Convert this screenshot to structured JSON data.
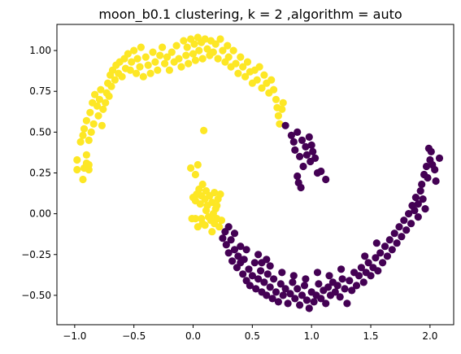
{
  "chart_data": {
    "type": "scatter",
    "title": "moon_b0.1 clustering, k = 2 ,algorithm = auto",
    "xlabel": "",
    "ylabel": "",
    "xlim": [
      -1.15,
      2.2
    ],
    "ylim": [
      -0.68,
      1.16
    ],
    "x_ticks": [
      -1.0,
      -0.5,
      0.0,
      0.5,
      1.0,
      1.5,
      2.0
    ],
    "x_tick_labels": [
      "−1.0",
      "−0.5",
      "0.0",
      "0.5",
      "1.0",
      "1.5",
      "2.0"
    ],
    "y_ticks": [
      -0.5,
      -0.25,
      0.0,
      0.25,
      0.5,
      0.75,
      1.0
    ],
    "y_tick_labels": [
      "−0.50",
      "−0.25",
      "0.00",
      "0.25",
      "0.50",
      "0.75",
      "1.00"
    ],
    "grid": false,
    "colors": {
      "cluster0": "#fde725",
      "cluster1": "#440154"
    },
    "series": [
      {
        "color": "#fde725",
        "points": [
          [
            -0.98,
            0.27
          ],
          [
            -0.98,
            0.33
          ],
          [
            -0.93,
            0.21
          ],
          [
            -0.92,
            0.28
          ],
          [
            -0.9,
            0.31
          ],
          [
            -0.9,
            0.36
          ],
          [
            -0.88,
            0.27
          ],
          [
            -0.88,
            0.3
          ],
          [
            -0.95,
            0.44
          ],
          [
            -0.93,
            0.48
          ],
          [
            -0.92,
            0.52
          ],
          [
            -0.9,
            0.57
          ],
          [
            -0.88,
            0.45
          ],
          [
            -0.87,
            0.62
          ],
          [
            -0.86,
            0.5
          ],
          [
            -0.84,
            0.55
          ],
          [
            -0.85,
            0.68
          ],
          [
            -0.83,
            0.73
          ],
          [
            -0.81,
            0.66
          ],
          [
            -0.8,
            0.6
          ],
          [
            -0.79,
            0.7
          ],
          [
            -0.78,
            0.76
          ],
          [
            -0.77,
            0.54
          ],
          [
            -0.76,
            0.64
          ],
          [
            -0.74,
            0.68
          ],
          [
            -0.73,
            0.74
          ],
          [
            -0.72,
            0.8
          ],
          [
            -0.71,
            0.72
          ],
          [
            -0.7,
            0.85
          ],
          [
            -0.69,
            0.78
          ],
          [
            -0.68,
            0.88
          ],
          [
            -0.66,
            0.82
          ],
          [
            -0.65,
            0.91
          ],
          [
            -0.63,
            0.86
          ],
          [
            -0.62,
            0.93
          ],
          [
            -0.6,
            0.84
          ],
          [
            -0.58,
            0.95
          ],
          [
            -0.57,
            0.89
          ],
          [
            -0.55,
            0.98
          ],
          [
            -0.53,
            0.88
          ],
          [
            -0.52,
            0.93
          ],
          [
            -0.5,
            1.0
          ],
          [
            -0.48,
            0.86
          ],
          [
            -0.47,
            0.95
          ],
          [
            -0.45,
            0.9
          ],
          [
            -0.44,
            1.02
          ],
          [
            -0.42,
            0.84
          ],
          [
            -0.4,
            0.96
          ],
          [
            -0.38,
            0.91
          ],
          [
            -0.36,
            0.86
          ],
          [
            -0.34,
            0.99
          ],
          [
            -0.32,
            0.93
          ],
          [
            -0.3,
            0.88
          ],
          [
            -0.28,
            0.97
          ],
          [
            -0.26,
            1.02
          ],
          [
            -0.24,
            0.92
          ],
          [
            -0.22,
            0.96
          ],
          [
            -0.2,
            0.88
          ],
          [
            -0.18,
            0.99
          ],
          [
            -0.16,
            0.93
          ],
          [
            -0.14,
            1.03
          ],
          [
            -0.12,
            0.95
          ],
          [
            -0.1,
            0.9
          ],
          [
            -0.08,
            1.06
          ],
          [
            -0.06,
            0.97
          ],
          [
            -0.05,
            1.02
          ],
          [
            -0.04,
            0.92
          ],
          [
            -0.02,
            1.07
          ],
          [
            0.0,
            0.98
          ],
          [
            0.01,
            1.04
          ],
          [
            0.02,
            0.94
          ],
          [
            0.04,
            1.08
          ],
          [
            0.05,
            1.0
          ],
          [
            0.07,
            1.05
          ],
          [
            0.08,
            0.95
          ],
          [
            0.1,
            1.07
          ],
          [
            0.12,
            1.01
          ],
          [
            0.14,
            0.97
          ],
          [
            0.15,
            1.06
          ],
          [
            0.17,
            0.99
          ],
          [
            0.19,
            1.04
          ],
          [
            0.21,
            0.95
          ],
          [
            0.23,
            1.07
          ],
          [
            0.25,
            1.0
          ],
          [
            0.27,
            0.93
          ],
          [
            0.29,
            1.03
          ],
          [
            0.3,
            0.96
          ],
          [
            0.32,
            0.9
          ],
          [
            0.34,
            1.0
          ],
          [
            0.36,
            0.92
          ],
          [
            0.38,
            0.86
          ],
          [
            0.4,
            0.96
          ],
          [
            0.42,
            0.9
          ],
          [
            0.44,
            0.84
          ],
          [
            0.46,
            0.93
          ],
          [
            0.48,
            0.87
          ],
          [
            0.5,
            0.8
          ],
          [
            0.52,
            0.88
          ],
          [
            0.54,
            0.82
          ],
          [
            0.56,
            0.9
          ],
          [
            0.58,
            0.77
          ],
          [
            0.6,
            0.85
          ],
          [
            0.62,
            0.8
          ],
          [
            0.64,
            0.74
          ],
          [
            0.66,
            0.82
          ],
          [
            0.68,
            0.76
          ],
          [
            0.7,
            0.7
          ],
          [
            0.71,
            0.65
          ],
          [
            0.72,
            0.6
          ],
          [
            0.73,
            0.55
          ],
          [
            0.75,
            0.64
          ],
          [
            0.76,
            0.68
          ],
          [
            0.09,
            0.51
          ],
          [
            -0.02,
            0.28
          ],
          [
            0.04,
            0.3
          ],
          [
            0.02,
            0.24
          ],
          [
            0.0,
            0.1
          ],
          [
            0.02,
            0.08
          ],
          [
            0.03,
            0.12
          ],
          [
            0.05,
            0.15
          ],
          [
            0.06,
            0.06
          ],
          [
            0.07,
            0.11
          ],
          [
            0.08,
            0.18
          ],
          [
            0.1,
            0.09
          ],
          [
            0.11,
            0.14
          ],
          [
            0.12,
            0.05
          ],
          [
            0.14,
            0.11
          ],
          [
            0.16,
            0.07
          ],
          [
            0.18,
            0.13
          ],
          [
            0.19,
            0.03
          ],
          [
            0.21,
            0.09
          ],
          [
            0.23,
            0.12
          ],
          [
            0.11,
            0.02
          ],
          [
            0.13,
            -0.02
          ],
          [
            0.15,
            -0.04
          ],
          [
            0.18,
            -0.06
          ],
          [
            0.2,
            -0.03
          ],
          [
            0.22,
            -0.08
          ],
          [
            0.24,
            -0.04
          ],
          [
            0.1,
            -0.07
          ],
          [
            0.07,
            -0.03
          ],
          [
            0.02,
            -0.03
          ],
          [
            -0.01,
            -0.03
          ],
          [
            0.04,
            -0.08
          ],
          [
            0.08,
            -0.06
          ],
          [
            0.16,
            -0.11
          ],
          [
            0.17,
            0.0
          ],
          [
            0.2,
            0.05
          ]
        ]
      },
      {
        "color": "#440154",
        "points": [
          [
            0.78,
            0.54
          ],
          [
            0.83,
            0.48
          ],
          [
            0.85,
            0.44
          ],
          [
            0.86,
            0.39
          ],
          [
            0.88,
            0.5
          ],
          [
            0.9,
            0.35
          ],
          [
            0.92,
            0.45
          ],
          [
            0.93,
            0.29
          ],
          [
            0.95,
            0.41
          ],
          [
            0.96,
            0.36
          ],
          [
            0.98,
            0.47
          ],
          [
            0.99,
            0.32
          ],
          [
            1.0,
            0.42
          ],
          [
            1.01,
            0.38
          ],
          [
            1.03,
            0.34
          ],
          [
            1.05,
            0.25
          ],
          [
            1.08,
            0.26
          ],
          [
            1.12,
            0.21
          ],
          [
            0.88,
            0.23
          ],
          [
            0.89,
            0.19
          ],
          [
            0.91,
            0.16
          ],
          [
            0.25,
            -0.15
          ],
          [
            0.27,
            -0.11
          ],
          [
            0.28,
            -0.19
          ],
          [
            0.3,
            -0.24
          ],
          [
            0.32,
            -0.16
          ],
          [
            0.33,
            -0.29
          ],
          [
            0.35,
            -0.22
          ],
          [
            0.37,
            -0.33
          ],
          [
            0.38,
            -0.26
          ],
          [
            0.4,
            -0.3
          ],
          [
            0.42,
            -0.37
          ],
          [
            0.43,
            -0.28
          ],
          [
            0.45,
            -0.41
          ],
          [
            0.47,
            -0.34
          ],
          [
            0.48,
            -0.44
          ],
          [
            0.5,
            -0.38
          ],
          [
            0.52,
            -0.3
          ],
          [
            0.53,
            -0.46
          ],
          [
            0.55,
            -0.4
          ],
          [
            0.57,
            -0.35
          ],
          [
            0.58,
            -0.48
          ],
          [
            0.6,
            -0.42
          ],
          [
            0.62,
            -0.5
          ],
          [
            0.63,
            -0.37
          ],
          [
            0.65,
            -0.45
          ],
          [
            0.67,
            -0.52
          ],
          [
            0.68,
            -0.4
          ],
          [
            0.7,
            -0.48
          ],
          [
            0.72,
            -0.54
          ],
          [
            0.74,
            -0.43
          ],
          [
            0.76,
            -0.5
          ],
          [
            0.78,
            -0.46
          ],
          [
            0.8,
            -0.55
          ],
          [
            0.82,
            -0.49
          ],
          [
            0.84,
            -0.42
          ],
          [
            0.86,
            -0.52
          ],
          [
            0.88,
            -0.46
          ],
          [
            0.9,
            -0.56
          ],
          [
            0.92,
            -0.5
          ],
          [
            0.94,
            -0.44
          ],
          [
            0.96,
            -0.53
          ],
          [
            0.98,
            -0.58
          ],
          [
            1.0,
            -0.48
          ],
          [
            1.02,
            -0.54
          ],
          [
            1.04,
            -0.5
          ],
          [
            1.06,
            -0.43
          ],
          [
            1.08,
            -0.52
          ],
          [
            1.1,
            -0.47
          ],
          [
            1.12,
            -0.55
          ],
          [
            1.14,
            -0.45
          ],
          [
            1.16,
            -0.5
          ],
          [
            1.18,
            -0.42
          ],
          [
            1.2,
            -0.48
          ],
          [
            1.22,
            -0.44
          ],
          [
            1.24,
            -0.51
          ],
          [
            1.26,
            -0.4
          ],
          [
            1.28,
            -0.46
          ],
          [
            1.3,
            -0.55
          ],
          [
            1.32,
            -0.41
          ],
          [
            1.34,
            -0.47
          ],
          [
            1.36,
            -0.36
          ],
          [
            1.38,
            -0.44
          ],
          [
            1.4,
            -0.38
          ],
          [
            1.42,
            -0.33
          ],
          [
            1.44,
            -0.42
          ],
          [
            1.46,
            -0.36
          ],
          [
            1.48,
            -0.3
          ],
          [
            1.5,
            -0.38
          ],
          [
            1.52,
            -0.33
          ],
          [
            1.54,
            -0.27
          ],
          [
            1.56,
            -0.35
          ],
          [
            1.58,
            -0.24
          ],
          [
            1.6,
            -0.3
          ],
          [
            1.62,
            -0.2
          ],
          [
            1.64,
            -0.26
          ],
          [
            1.66,
            -0.16
          ],
          [
            1.68,
            -0.22
          ],
          [
            1.7,
            -0.12
          ],
          [
            1.72,
            -0.18
          ],
          [
            1.74,
            -0.08
          ],
          [
            1.76,
            -0.14
          ],
          [
            1.78,
            -0.04
          ],
          [
            1.8,
            -0.1
          ],
          [
            1.82,
            0.0
          ],
          [
            1.84,
            -0.06
          ],
          [
            1.85,
            0.05
          ],
          [
            1.87,
            0.02
          ],
          [
            1.88,
            0.1
          ],
          [
            1.9,
            0.06
          ],
          [
            1.92,
            0.14
          ],
          [
            1.93,
            0.18
          ],
          [
            1.95,
            0.24
          ],
          [
            1.97,
            0.29
          ],
          [
            1.98,
            0.22
          ],
          [
            1.99,
            0.4
          ],
          [
            2.0,
            0.33
          ],
          [
            2.01,
            0.38
          ],
          [
            2.02,
            0.3
          ],
          [
            2.04,
            0.27
          ],
          [
            2.05,
            0.2
          ],
          [
            2.08,
            0.34
          ],
          [
            1.94,
            0.09
          ],
          [
            1.96,
            0.03
          ],
          [
            1.9,
            -0.02
          ],
          [
            0.55,
            -0.25
          ],
          [
            0.58,
            -0.3
          ],
          [
            0.45,
            -0.22
          ],
          [
            0.35,
            -0.12
          ],
          [
            0.3,
            -0.08
          ],
          [
            0.62,
            -0.28
          ],
          [
            0.4,
            -0.2
          ],
          [
            0.65,
            -0.32
          ],
          [
            0.85,
            -0.38
          ],
          [
            0.95,
            -0.4
          ],
          [
            1.05,
            -0.36
          ],
          [
            1.15,
            -0.38
          ],
          [
            1.25,
            -0.34
          ],
          [
            0.75,
            -0.36
          ],
          [
            1.45,
            -0.26
          ],
          [
            1.55,
            -0.18
          ]
        ]
      }
    ]
  }
}
